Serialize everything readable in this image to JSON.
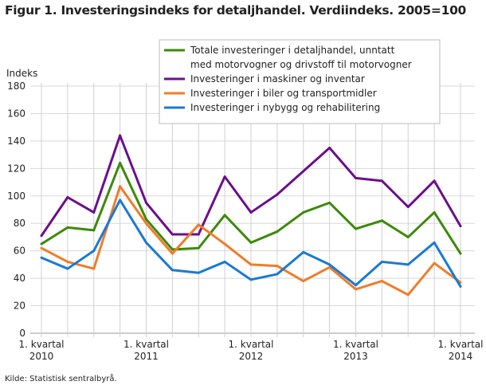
{
  "title": "Figur 1. Investeringsindeks for detaljhandel. Verdiindeks. 2005=100",
  "source": "Kilde: Statistisk sentralbyrå.",
  "chart_data": {
    "type": "line",
    "title": "Figur 1. Investeringsindeks for detaljhandel. Verdiindeks. 2005=100",
    "ylabel": "Indeks",
    "xlabel": "",
    "ylim": [
      0,
      180
    ],
    "yticks": [
      0,
      20,
      40,
      60,
      80,
      100,
      120,
      140,
      160,
      180
    ],
    "grid": true,
    "legend_position": "top-right",
    "x": [
      "2010K1",
      "2010K2",
      "2010K3",
      "2010K4",
      "2011K1",
      "2011K2",
      "2011K3",
      "2011K4",
      "2012K1",
      "2012K2",
      "2012K3",
      "2012K4",
      "2013K1",
      "2013K2",
      "2013K3",
      "2013K4",
      "2014K1"
    ],
    "xtick_labels": [
      {
        "index": 0,
        "line1": "1. kvartal",
        "line2": "2010"
      },
      {
        "index": 4,
        "line1": "1. kvartal",
        "line2": "2011"
      },
      {
        "index": 8,
        "line1": "1. kvartal",
        "line2": "2012"
      },
      {
        "index": 12,
        "line1": "1. kvartal",
        "line2": "2013"
      },
      {
        "index": 16,
        "line1": "1. kvartal",
        "line2": "2014"
      }
    ],
    "series": [
      {
        "name": "Totale investeringer i detaljhandel, unntatt",
        "name2": "med motorvogner og drivstoff til motorvogner",
        "color": "#3d8a0a",
        "values": [
          65,
          77,
          75,
          124,
          83,
          61,
          62,
          86,
          66,
          74,
          88,
          95,
          76,
          82,
          70,
          88,
          58
        ]
      },
      {
        "name": "Investeringer i maskiner og inventar",
        "color": "#6b0f8c",
        "values": [
          71,
          99,
          88,
          144,
          95,
          72,
          72,
          114,
          88,
          101,
          118,
          135,
          113,
          111,
          92,
          111,
          78
        ]
      },
      {
        "name": "Investeringer i biler og transportmidler",
        "color": "#f07c2a",
        "values": [
          62,
          52,
          47,
          107,
          80,
          58,
          79,
          65,
          50,
          49,
          38,
          48,
          32,
          38,
          28,
          51,
          37
        ]
      },
      {
        "name": "Investeringer i nybygg og rehabilitering",
        "color": "#1a7ad4",
        "values": [
          55,
          47,
          60,
          97,
          66,
          46,
          44,
          52,
          39,
          43,
          59,
          50,
          35,
          52,
          50,
          66,
          34
        ]
      }
    ]
  }
}
